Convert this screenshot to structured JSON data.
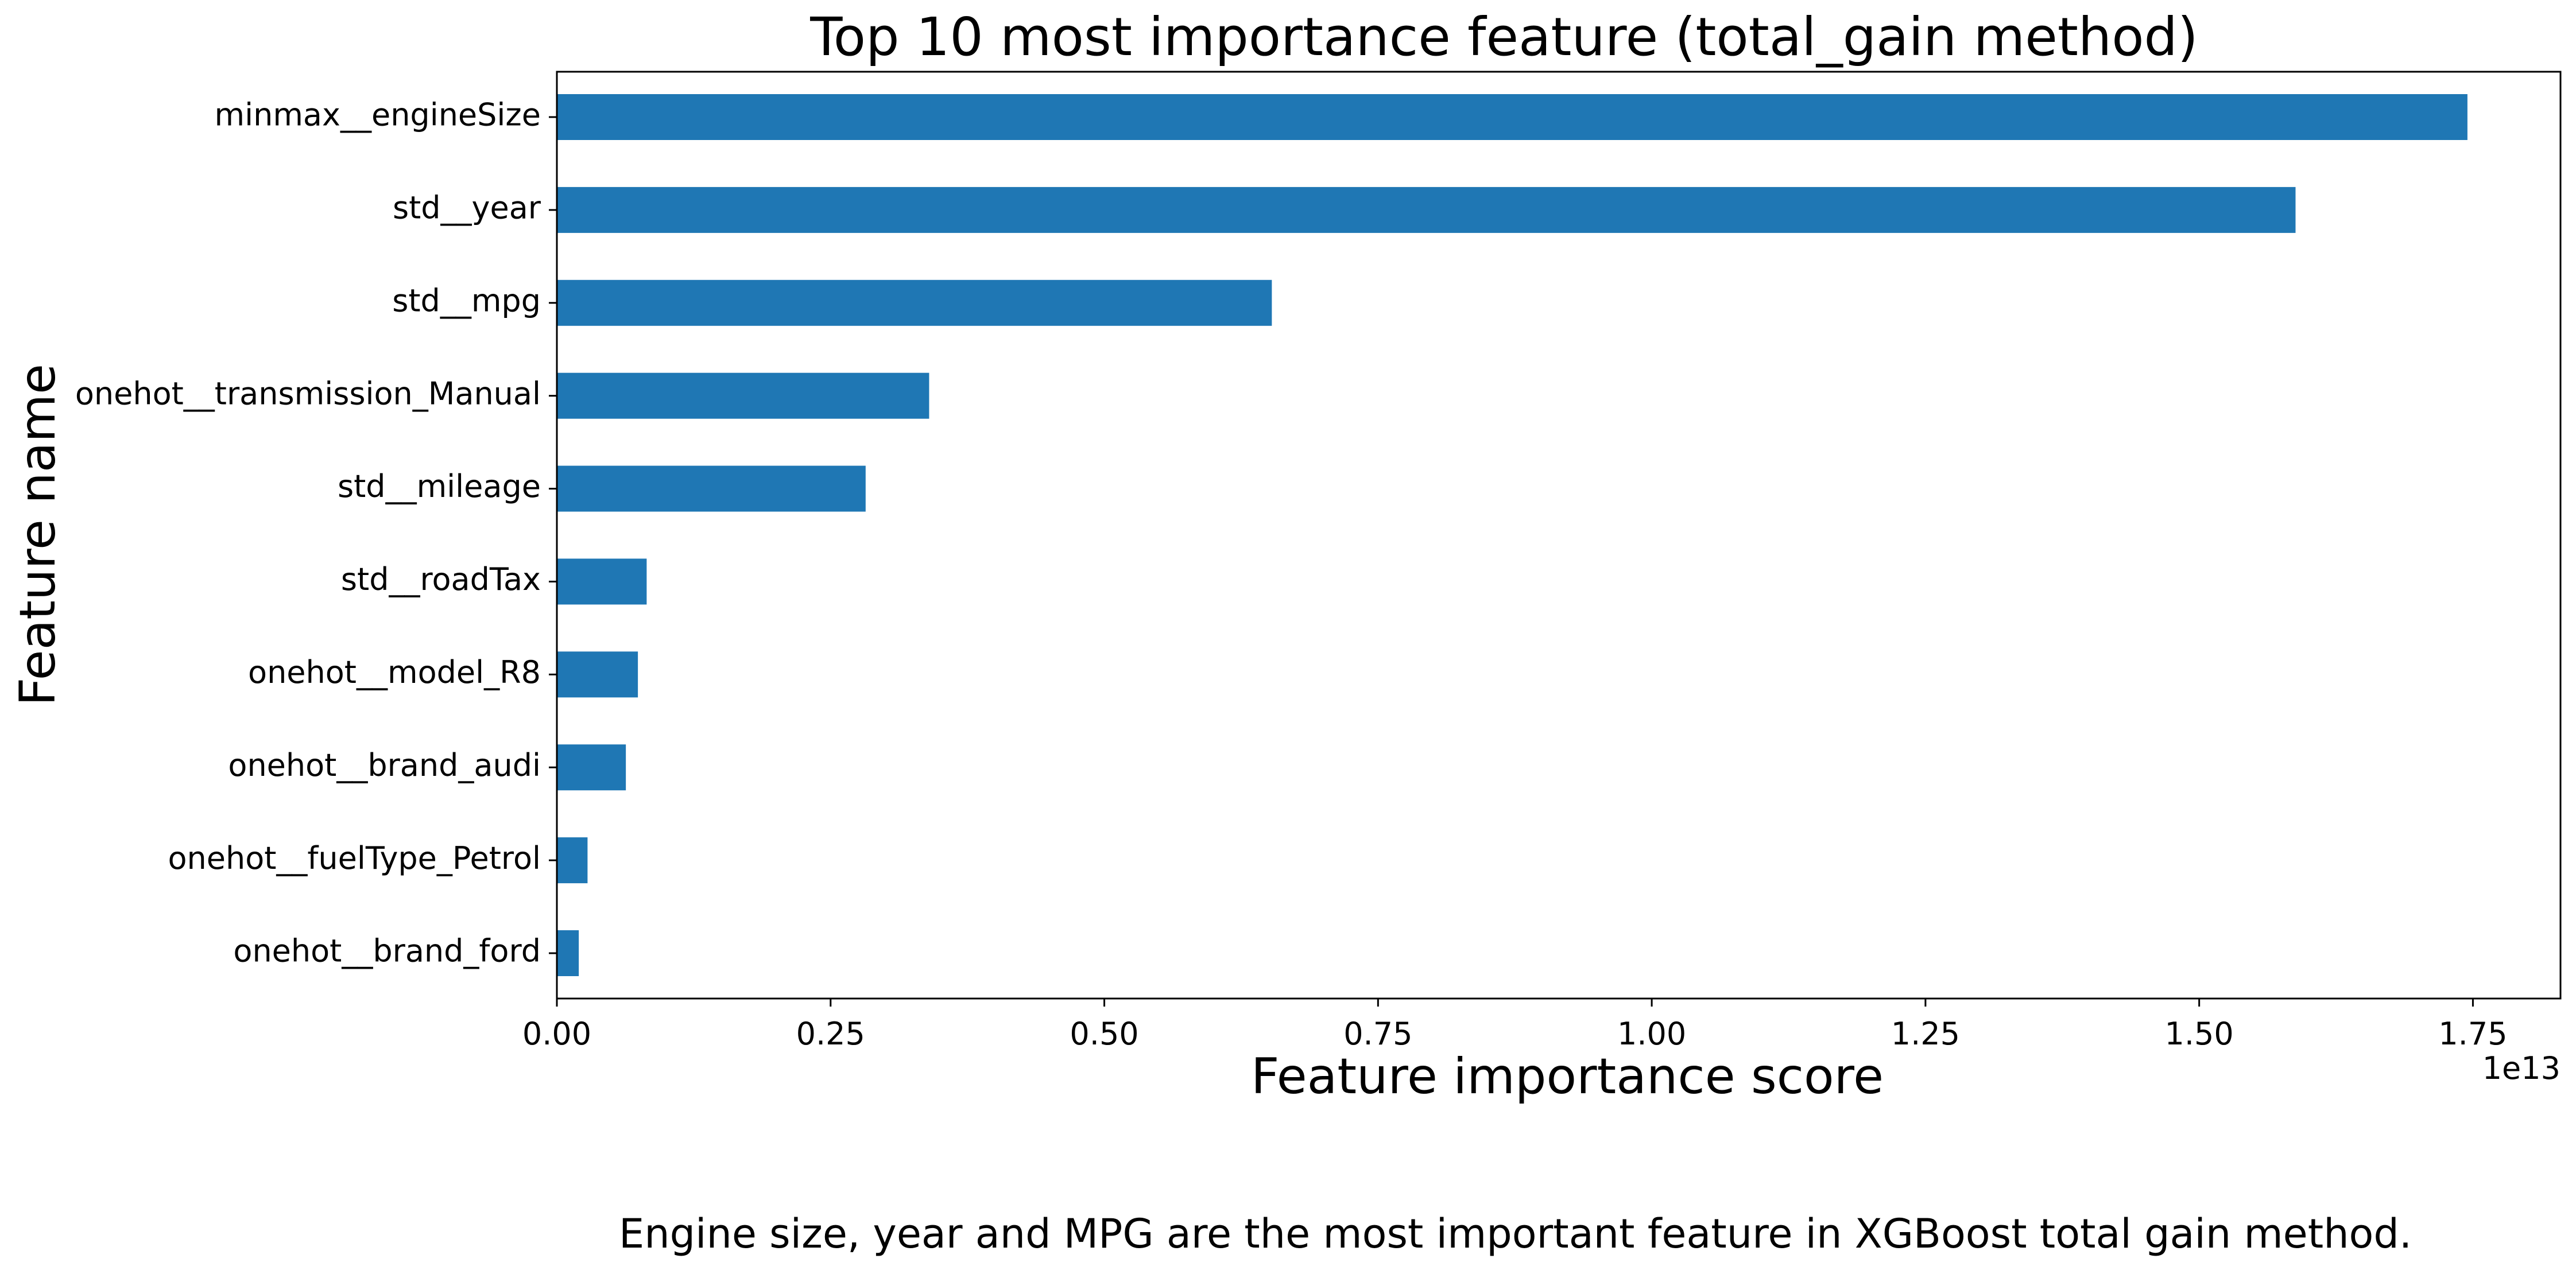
{
  "chart_data": {
    "type": "bar",
    "orientation": "horizontal",
    "title": "Top 10 most importance feature (total_gain method)",
    "xlabel": "Feature importance score",
    "ylabel": "Feature name",
    "x_offset_label": "1e13",
    "xlim": [
      0,
      1.83
    ],
    "xticks": [
      0.0,
      0.25,
      0.5,
      0.75,
      1.0,
      1.25,
      1.5,
      1.75
    ],
    "xtick_labels": [
      "0.00",
      "0.25",
      "0.50",
      "0.75",
      "1.00",
      "1.25",
      "1.50",
      "1.75"
    ],
    "categories": [
      "minmax__engineSize",
      "std__year",
      "std__mpg",
      "onehot__transmission_Manual",
      "std__mileage",
      "std__roadTax",
      "onehot__model_R8",
      "onehot__brand_audi",
      "onehot__fuelType_Petrol",
      "onehot__brand_ford"
    ],
    "values": [
      1.745,
      1.588,
      0.653,
      0.34,
      0.282,
      0.082,
      0.074,
      0.063,
      0.028,
      0.02
    ],
    "bar_color": "#1f77b4",
    "grid": false,
    "legend": "none"
  },
  "caption": "Engine size, year and MPG are the most important feature in XGBoost total gain method."
}
